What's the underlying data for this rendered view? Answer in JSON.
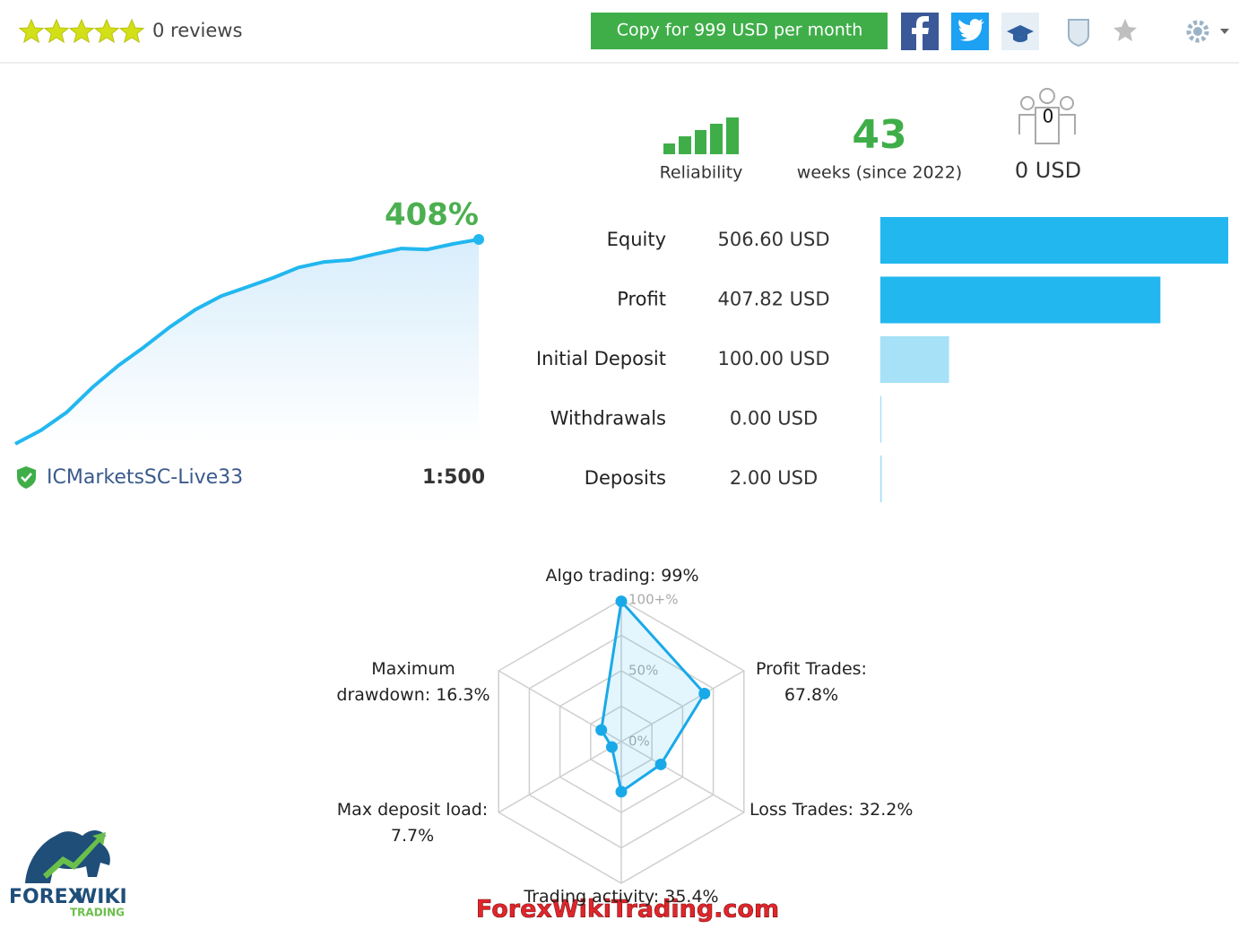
{
  "header": {
    "reviews": "0 reviews",
    "copy_button": "Copy for 999 USD per month"
  },
  "stats": {
    "reliability_label": "Reliability",
    "weeks": 43,
    "weeks_label": "weeks (since 2022)",
    "subscribers": 0,
    "subscribers_funds": "0 USD"
  },
  "account": {
    "server": "ICMarketsSC-Live33",
    "leverage": "1:500"
  },
  "chart_data": [
    {
      "type": "area",
      "title": "408%",
      "color": "#22b7ef",
      "values": [
        0,
        27,
        63,
        113,
        156,
        193,
        233,
        268,
        295,
        313,
        331,
        352,
        363,
        367,
        379,
        390,
        388,
        399,
        408
      ]
    },
    {
      "type": "bar",
      "orientation": "horizontal",
      "categories": [
        "Equity",
        "Profit",
        "Initial Deposit",
        "Withdrawals",
        "Deposits"
      ],
      "values": [
        506.6,
        407.82,
        100.0,
        0.0,
        2.0
      ],
      "value_labels": [
        "506.60 USD",
        "407.82 USD",
        "100.00 USD",
        "0.00 USD",
        "2.00 USD"
      ],
      "colors": [
        "#22b7ef",
        "#22b7ef",
        "#a6e1f7",
        "#a6e1f7",
        "#a6e1f7"
      ]
    },
    {
      "type": "radar",
      "color": "#1aa9e8",
      "categories": [
        "Algo trading:",
        "Profit Trades:",
        "Loss Trades:",
        "Trading activity:",
        "Max deposit load:",
        "Maximum drawdown:"
      ],
      "values": [
        99,
        67.8,
        32.2,
        35.4,
        7.7,
        16.3
      ],
      "value_labels": [
        "99%",
        "67.8%",
        "32.2%",
        "35.4%",
        "7.7%",
        "16.3%"
      ],
      "ylim": [
        0,
        100
      ],
      "yticks": [
        {
          "value": 0,
          "label": "0%"
        },
        {
          "value": 50,
          "label": "50%"
        },
        {
          "value": 100,
          "label": "100+%"
        }
      ]
    }
  ],
  "watermark": {
    "logo_top": "FOREX",
    "logo_mid": "WIKI",
    "logo_bottom": "TRADING",
    "site": "ForexWikiTrading.com"
  }
}
